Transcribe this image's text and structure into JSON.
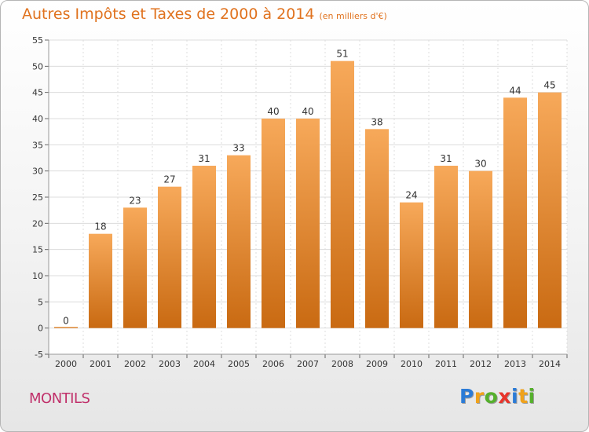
{
  "title": "Autres Impôts et Taxes de 2000 à 2014",
  "unit": "(en milliers d'€)",
  "commune": "MONTILS",
  "brand": {
    "letters": [
      "P",
      "r",
      "o",
      "x",
      "i",
      "t",
      "i"
    ],
    "colors": [
      "#2b7bd6",
      "#f0a21b",
      "#55b02c",
      "#e8342b",
      "#2b7bd6",
      "#f0a21b",
      "#55b02c"
    ]
  },
  "chart_data": {
    "type": "bar",
    "categories": [
      "2000",
      "2001",
      "2002",
      "2003",
      "2004",
      "2005",
      "2006",
      "2007",
      "2008",
      "2009",
      "2010",
      "2011",
      "2012",
      "2013",
      "2014"
    ],
    "values": [
      0,
      18,
      23,
      27,
      31,
      33,
      40,
      40,
      51,
      38,
      24,
      31,
      30,
      44,
      45
    ],
    "ylim": [
      -5,
      55
    ],
    "yticks": [
      -5,
      0,
      5,
      10,
      15,
      20,
      25,
      30,
      35,
      40,
      45,
      50,
      55
    ],
    "grid": true,
    "bar_color_top": "#f7a95a",
    "bar_color_bottom": "#c96a12"
  }
}
